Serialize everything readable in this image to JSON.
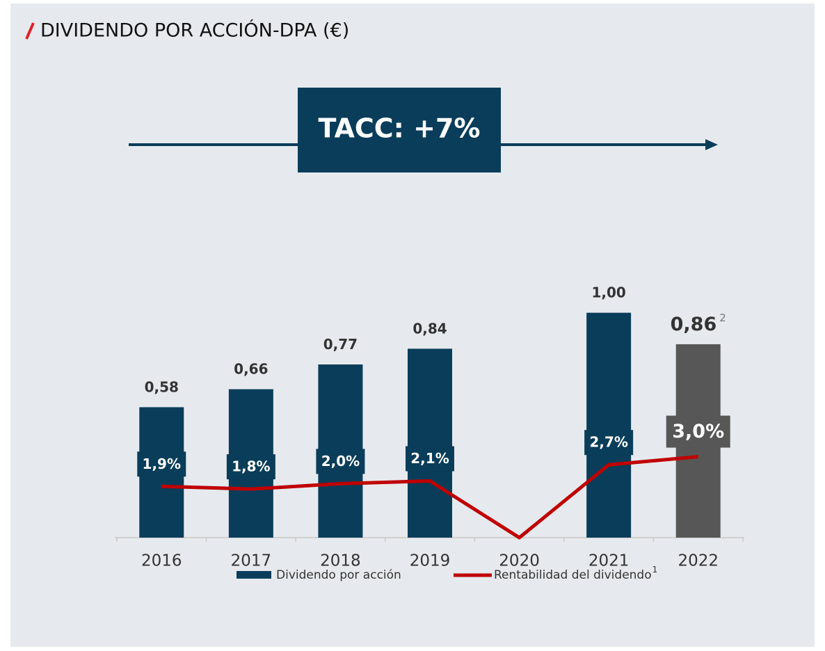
{
  "chart_data": {
    "type": "bar_line",
    "title": "DIVIDENDO POR ACCIÓN-DPA (€)",
    "annotation": "TACC: +7%",
    "categories": [
      "2016",
      "2017",
      "2018",
      "2019",
      "2020",
      "2021",
      "2022"
    ],
    "series": [
      {
        "name": "Dividendo por acción",
        "type": "bar",
        "color": "#0a3d5a",
        "colors": [
          "#0a3d5a",
          "#0a3d5a",
          "#0a3d5a",
          "#0a3d5a",
          "#0a3d5a",
          "#0a3d5a",
          "#575757"
        ],
        "values": [
          0.58,
          0.66,
          0.77,
          0.84,
          null,
          1.0,
          0.86
        ],
        "value_labels": [
          "0,58",
          "0,66",
          "0,77",
          "0,84",
          null,
          "1,00",
          "0,86"
        ],
        "value_label_sups": [
          null,
          null,
          null,
          null,
          null,
          null,
          "2"
        ]
      },
      {
        "name": "Rentabilidad del dividendo",
        "name_sup": "1",
        "type": "line",
        "axis": "y2",
        "color": "#c00000",
        "label_colors": [
          "#0a3d5a",
          "#0a3d5a",
          "#0a3d5a",
          "#0a3d5a",
          null,
          "#0a3d5a",
          "#575757"
        ],
        "values": [
          1.9,
          1.8,
          2.0,
          2.1,
          0,
          2.7,
          3.0
        ],
        "value_labels": [
          "1,9%",
          "1,8%",
          "2,0%",
          "2,1%",
          null,
          "2,7%",
          "3,0%"
        ]
      }
    ],
    "ylim": [
      0,
      1.2
    ],
    "y2lim": [
      0,
      10
    ]
  }
}
